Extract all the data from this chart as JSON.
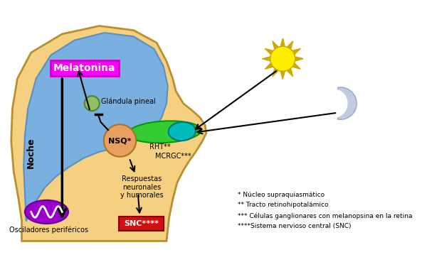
{
  "bg_color": "#ffffff",
  "head_fill": "#f5d080",
  "head_edge": "#b89030",
  "brain_fill": "#7ab0e0",
  "brain_edge": "#5890c0",
  "melatonina_bg": "#ff00ff",
  "melatonina_text": "#ffffff",
  "melatonina_label": "Melatonina",
  "glandula_fill": "#90c060",
  "glandula_label": "Glándula pineal",
  "nsq_fill": "#e8a060",
  "nsq_label": "NSQ*",
  "rht_label": "RHT**",
  "mcrgc_label": "MCRGC***",
  "noche_label": "Noche",
  "snc_bg": "#cc1111",
  "snc_text": "#ffffff",
  "snc_label": "SNC****",
  "osciladores_label": "Osciladores periféricos",
  "respuestas_label": "Respuestas\nneuronales\ny humorales",
  "eye_green": "#33cc33",
  "eye_cyan": "#00bbbb",
  "sun_color": "#ffee00",
  "sun_ray_color": "#ccaa00",
  "moon_color": "#c0cce0",
  "moon_edge": "#9aaabb",
  "oscillator_fill": "#9900cc",
  "oscillator_edge": "#660099",
  "footnote1": "* Núcleo supraquiasmático",
  "footnote2": "** Tracto retinohipotalámico",
  "footnote3": "*** Células ganglionares con melanopsina en la retina",
  "footnote4": "****Sistema nervioso central (SNC)"
}
